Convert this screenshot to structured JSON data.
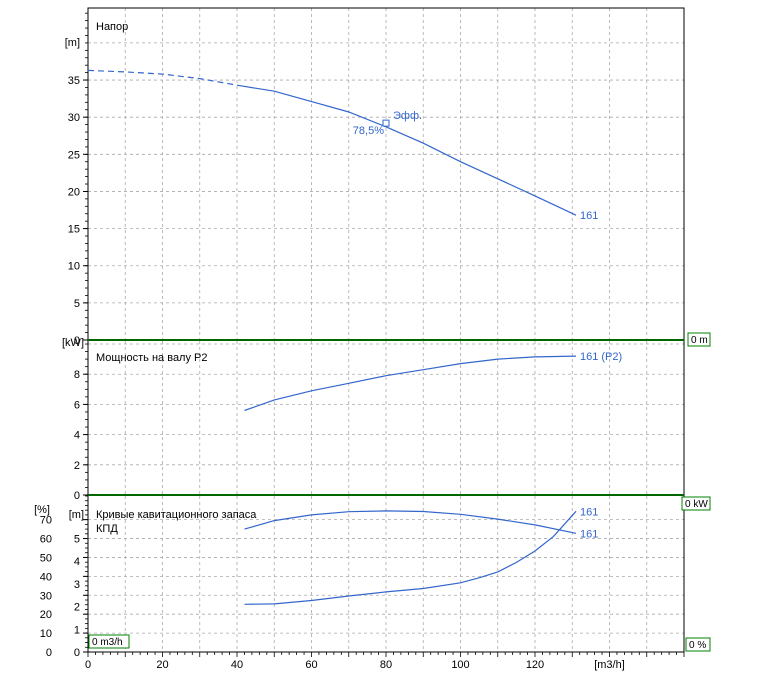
{
  "chart_data": [
    {
      "type": "line",
      "title": "Напор",
      "ylabel": "[m]",
      "xlabel": "",
      "ylim": [
        0,
        40
      ],
      "yticks": [
        0,
        5,
        10,
        15,
        20,
        25,
        30,
        35
      ],
      "grid": true,
      "series": [
        {
          "name": "161",
          "dashed_until_x": 40,
          "x": [
            0,
            10,
            20,
            30,
            40,
            50,
            60,
            70,
            80,
            90,
            100,
            110,
            120,
            131
          ],
          "y": [
            36.3,
            36.1,
            35.8,
            35.2,
            34.3,
            33.5,
            32.1,
            30.7,
            28.7,
            26.5,
            24.0,
            21.7,
            19.4,
            16.8
          ]
        }
      ],
      "annotations": [
        {
          "text": "Эфф.",
          "x": 80,
          "y": 29.2,
          "marker": "square"
        },
        {
          "text": "78,5%",
          "x": 80,
          "y": 29.2
        }
      ],
      "side_box": "0 m"
    },
    {
      "type": "line",
      "title": "Мощность на валу P2",
      "ylabel": "[kW]",
      "xlabel": "",
      "ylim": [
        0,
        10
      ],
      "yticks": [
        0,
        2,
        4,
        6,
        8
      ],
      "grid": true,
      "series": [
        {
          "name": "161 (P2)",
          "x": [
            42,
            50,
            60,
            70,
            80,
            90,
            100,
            110,
            120,
            131
          ],
          "y": [
            5.6,
            6.3,
            6.9,
            7.4,
            7.9,
            8.3,
            8.7,
            9.0,
            9.15,
            9.2
          ]
        }
      ],
      "side_box": "0 kW"
    },
    {
      "type": "line",
      "titles": [
        "Кривые кавитационного запаса",
        "КПД"
      ],
      "ylabel_left": "[%]",
      "ylabel_right": "[m]",
      "xlabel": "[m3/h]",
      "xlim": [
        0,
        140
      ],
      "xticks": [
        0,
        20,
        40,
        60,
        80,
        100,
        120
      ],
      "ylim_pct": [
        0,
        80
      ],
      "yticks_pct": [
        0,
        10,
        20,
        30,
        40,
        50,
        60,
        70
      ],
      "ylim_m": [
        0,
        6.875
      ],
      "yticks_m": [
        0,
        1,
        2,
        3,
        4,
        5
      ],
      "grid": true,
      "series": [
        {
          "name": "161",
          "axis": "pct",
          "x": [
            42,
            50,
            60,
            70,
            80,
            90,
            100,
            110,
            120,
            131
          ],
          "y": [
            65,
            69.5,
            72.5,
            74.2,
            74.6,
            74.3,
            72.8,
            70.3,
            67.2,
            62.8
          ]
        },
        {
          "name": "161",
          "axis": "m",
          "x": [
            42,
            50,
            60,
            70,
            80,
            90,
            100,
            105,
            110,
            115,
            120,
            125,
            128,
            131
          ],
          "y": [
            2.1,
            2.12,
            2.27,
            2.47,
            2.65,
            2.8,
            3.05,
            3.27,
            3.53,
            3.95,
            4.45,
            5.1,
            5.65,
            6.2
          ]
        }
      ],
      "box_left": "0 m3/h",
      "side_box": "0 %"
    }
  ],
  "colors": {
    "curve": "#3366CC",
    "grid": "#AAAAAA",
    "separator": "#006600",
    "box_border": "#008000"
  }
}
